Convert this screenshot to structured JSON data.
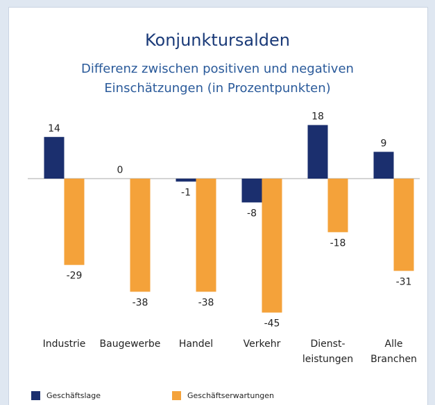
{
  "chart_data": {
    "type": "bar",
    "title": "Konjunktursalden",
    "subtitle": "Differenz zwischen positiven und negativen\nEinschätzungen (in Prozentpunkten)",
    "categories": [
      "Industrie",
      "Baugewerbe",
      "Handel",
      "Verkehr",
      "Dienst-\nleistungen",
      "Alle\nBranchen"
    ],
    "series": [
      {
        "name": "Geschäftslage",
        "color": "#1b2f6e",
        "values": [
          14,
          0,
          -1,
          -8,
          18,
          9
        ]
      },
      {
        "name": "Geschäftserwartungen",
        "color": "#f4a23a",
        "values": [
          -29,
          -38,
          -38,
          -45,
          -18,
          -31
        ]
      }
    ],
    "ylim": [
      -50,
      20
    ]
  }
}
